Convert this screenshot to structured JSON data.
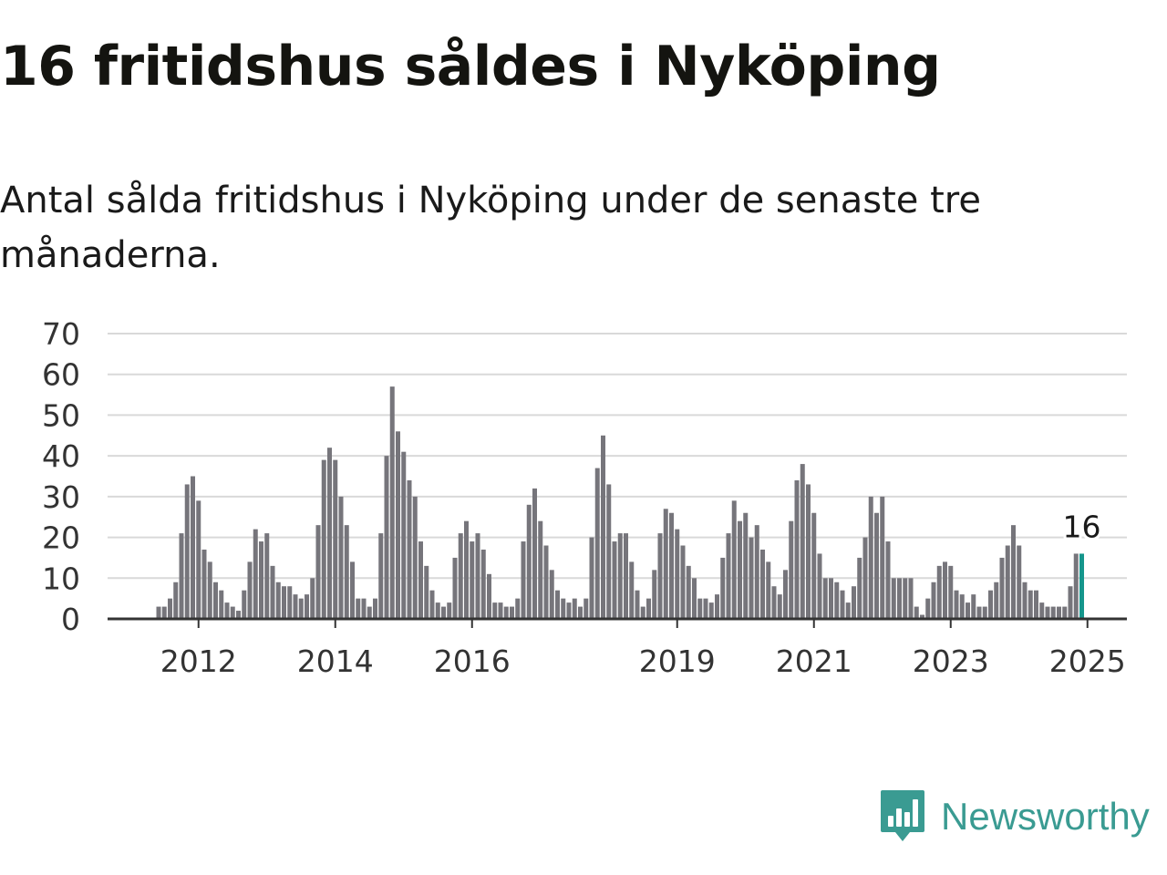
{
  "header": {
    "title": "16 fritidshus såldes i Nyköping",
    "subtitle": "Antal sålda fritidshus i Nyköping under de senaste tre månaderna."
  },
  "branding": {
    "name": "Newsworthy",
    "logo_icon": "newsworthy-bar-chart-icon",
    "color": "#3a9b92"
  },
  "colors": {
    "bar": "#76757b",
    "highlight": "#15968c",
    "grid": "#d9d9d9",
    "axis": "#333333"
  },
  "chart_data": {
    "type": "bar",
    "title": "16 fritidshus såldes i Nyköping",
    "subtitle": "Antal sålda fritidshus i Nyköping under de senaste tre månaderna.",
    "xlabel": "",
    "ylabel": "",
    "ylim": [
      0,
      70
    ],
    "yticks": [
      0,
      10,
      20,
      30,
      40,
      50,
      60,
      70
    ],
    "xticks": [
      "2012",
      "2014",
      "2016",
      "2019",
      "2021",
      "2023",
      "2025"
    ],
    "grid": true,
    "legend": "none",
    "x_start": "2011-06",
    "x_end": "2025-07",
    "highlight_label": "16",
    "values": [
      3,
      3,
      5,
      9,
      21,
      33,
      35,
      29,
      17,
      14,
      9,
      7,
      4,
      3,
      2,
      7,
      14,
      22,
      19,
      21,
      13,
      9,
      8,
      8,
      6,
      5,
      6,
      10,
      23,
      39,
      42,
      39,
      30,
      23,
      14,
      5,
      5,
      3,
      5,
      21,
      40,
      57,
      46,
      41,
      34,
      30,
      19,
      13,
      7,
      4,
      3,
      4,
      15,
      21,
      24,
      19,
      21,
      17,
      11,
      4,
      4,
      3,
      3,
      5,
      19,
      28,
      32,
      24,
      18,
      12,
      7,
      5,
      4,
      5,
      3,
      5,
      20,
      37,
      45,
      33,
      19,
      21,
      21,
      14,
      7,
      3,
      5,
      12,
      21,
      27,
      26,
      22,
      18,
      13,
      10,
      5,
      5,
      4,
      6,
      15,
      21,
      29,
      24,
      26,
      20,
      23,
      17,
      14,
      8,
      6,
      12,
      24,
      34,
      38,
      33,
      26,
      16,
      10,
      10,
      9,
      7,
      4,
      8,
      15,
      20,
      30,
      26,
      30,
      19,
      10,
      10,
      10,
      10,
      3,
      1,
      5,
      9,
      13,
      14,
      13,
      7,
      6,
      4,
      6,
      3,
      3,
      7,
      9,
      15,
      18,
      23,
      18,
      9,
      7,
      7,
      4,
      3,
      3,
      3,
      3,
      8,
      16,
      16
    ]
  }
}
